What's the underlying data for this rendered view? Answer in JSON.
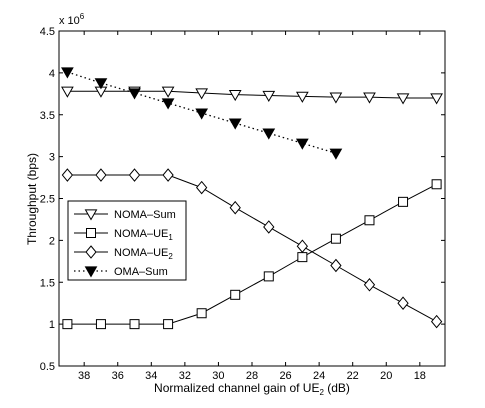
{
  "chart_data": {
    "type": "line",
    "xlabel": "Normalized channel gain of UE",
    "xlabel_sub": "2",
    "xlabel_unit": " (dB)",
    "ylabel": "Throughput (bps)",
    "y_multiplier_base": "x 10",
    "y_multiplier_exp": "6",
    "xlim": [
      39.5,
      16.5
    ],
    "x_reversed": true,
    "ylim": [
      0.5,
      4.5
    ],
    "xticks": [
      38,
      36,
      34,
      32,
      30,
      28,
      26,
      24,
      22,
      20,
      18
    ],
    "xtick_labels": [
      "38",
      "36",
      "34",
      "32",
      "30",
      "28",
      "26",
      "24",
      "22",
      "20",
      "18"
    ],
    "yticks": [
      0.5,
      1,
      1.5,
      2,
      2.5,
      3,
      3.5,
      4,
      4.5
    ],
    "ytick_labels": [
      "0.5",
      "1",
      "1.5",
      "2",
      "2.5",
      "3",
      "3.5",
      "4",
      "4.5"
    ],
    "grid": false,
    "legend_position": "center-left",
    "series": [
      {
        "name": "NOMA–Sum",
        "name_sub": "",
        "marker": "triangle-down-open",
        "line": "solid",
        "x": [
          39,
          37,
          35,
          33,
          31,
          29,
          27,
          25,
          23,
          21,
          19,
          17
        ],
        "values": [
          3.78,
          3.78,
          3.78,
          3.78,
          3.76,
          3.74,
          3.73,
          3.72,
          3.71,
          3.71,
          3.7,
          3.7
        ]
      },
      {
        "name": "NOMA–UE",
        "name_sub": "1",
        "marker": "square-open",
        "line": "solid",
        "x": [
          39,
          37,
          35,
          33,
          31,
          29,
          27,
          25,
          23,
          21,
          19,
          17
        ],
        "values": [
          1.0,
          1.0,
          1.0,
          1.0,
          1.13,
          1.35,
          1.57,
          1.8,
          2.02,
          2.24,
          2.46,
          2.67
        ]
      },
      {
        "name": "NOMA–UE",
        "name_sub": "2",
        "marker": "diamond-open",
        "line": "solid",
        "x": [
          39,
          37,
          35,
          33,
          31,
          29,
          27,
          25,
          23,
          21,
          19,
          17
        ],
        "values": [
          2.78,
          2.78,
          2.78,
          2.78,
          2.63,
          2.39,
          2.16,
          1.93,
          1.7,
          1.47,
          1.25,
          1.03
        ]
      },
      {
        "name": "OMA–Sum",
        "name_sub": "",
        "marker": "triangle-down-filled",
        "line": "dotted",
        "x": [
          39,
          37,
          35,
          33,
          31,
          29,
          27,
          25,
          23
        ],
        "values": [
          4.01,
          3.88,
          3.76,
          3.64,
          3.52,
          3.4,
          3.28,
          3.16,
          3.04
        ]
      }
    ]
  }
}
